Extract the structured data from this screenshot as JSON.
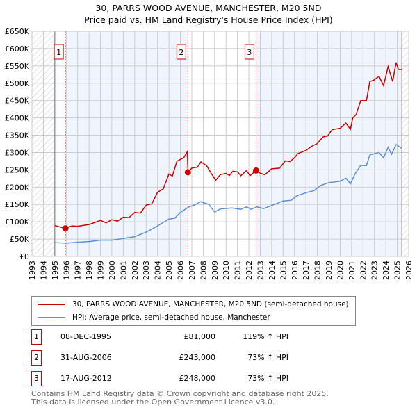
{
  "chart_data": {
    "type": "line",
    "title": "30, PARRS WOOD AVENUE, MANCHESTER, M20 5ND",
    "subtitle": "Price paid vs. HM Land Registry's House Price Index (HPI)",
    "xlim": [
      1993,
      2026
    ],
    "ylim": [
      0,
      650000
    ],
    "x_ticks": [
      "1993",
      "1994",
      "1995",
      "1996",
      "1997",
      "1998",
      "1999",
      "2000",
      "2001",
      "2002",
      "2003",
      "2004",
      "2005",
      "2006",
      "2007",
      "2008",
      "2009",
      "2010",
      "2011",
      "2012",
      "2013",
      "2014",
      "2015",
      "2016",
      "2017",
      "2018",
      "2019",
      "2020",
      "2021",
      "2022",
      "2023",
      "2024",
      "2025",
      "2026"
    ],
    "y_ticks": [
      "£0",
      "£50K",
      "£100K",
      "£150K",
      "£200K",
      "£250K",
      "£300K",
      "£350K",
      "£400K",
      "£450K",
      "£500K",
      "£550K",
      "£600K",
      "£650K"
    ],
    "grid": true,
    "series": [
      {
        "name": "30, PARRS WOOD AVENUE, MANCHESTER, M20 5ND (semi-detached house)",
        "color": "#cc0000",
        "x": [
          1995.0,
          1995.9,
          1996.5,
          1997,
          1998,
          1999,
          1999.5,
          2000,
          2000.5,
          2001,
          2001.5,
          2002,
          2002.5,
          2003,
          2003.5,
          2004,
          2004.5,
          2005,
          2005.3,
          2005.7,
          2006.3,
          2006.6,
          2006.67,
          2007,
          2007.5,
          2007.8,
          2008.3,
          2008.7,
          2009.1,
          2009.5,
          2010,
          2010.3,
          2010.6,
          2011,
          2011.3,
          2011.8,
          2012.1,
          2012.62,
          2013,
          2013.4,
          2014,
          2014.7,
          2015.2,
          2015.6,
          2016,
          2016.3,
          2017,
          2017.5,
          2018,
          2018.5,
          2018.9,
          2019.3,
          2020,
          2020.5,
          2020.9,
          2021.1,
          2021.4,
          2021.8,
          2022.3,
          2022.6,
          2023,
          2023.4,
          2023.8,
          2024.2,
          2024.6,
          2024.9,
          2025.1,
          2025.4
        ],
        "y": [
          89,
          81,
          88,
          87,
          92,
          104,
          97,
          106,
          102,
          113,
          112,
          127,
          125,
          148,
          152,
          185,
          195,
          238,
          232,
          275,
          285,
          302,
          243,
          255,
          258,
          273,
          262,
          240,
          220,
          236,
          240,
          234,
          246,
          244,
          233,
          248,
          233,
          248,
          240,
          236,
          253,
          255,
          276,
          274,
          285,
          297,
          306,
          318,
          326,
          345,
          348,
          366,
          370,
          385,
          367,
          400,
          410,
          450,
          450,
          505,
          510,
          520,
          493,
          548,
          505,
          560,
          540,
          540
        ]
      },
      {
        "name": "HPI: Average price, semi-detached house, Manchester",
        "color": "#5b8fd6",
        "x": [
          1995,
          1996,
          1997,
          1998,
          1999,
          2000,
          2001,
          2002,
          2003,
          2004,
          2005,
          2005.5,
          2006,
          2006.7,
          2007.2,
          2007.8,
          2008.5,
          2009,
          2009.5,
          2010.5,
          2011.3,
          2011.8,
          2012.2,
          2012.7,
          2013.3,
          2014,
          2015,
          2015.7,
          2016.2,
          2017,
          2017.7,
          2018.3,
          2019,
          2020,
          2020.5,
          2020.9,
          2021.3,
          2021.8,
          2022.3,
          2022.6,
          2023.4,
          2023.8,
          2024.2,
          2024.5,
          2024.9,
          2025.4
        ],
        "y": [
          40,
          38,
          41,
          43,
          47,
          47,
          52,
          57,
          70,
          88,
          108,
          110,
          127,
          142,
          148,
          158,
          150,
          128,
          137,
          140,
          136,
          143,
          136,
          143,
          138,
          147,
          160,
          162,
          175,
          184,
          190,
          205,
          213,
          217,
          226,
          210,
          238,
          263,
          262,
          293,
          300,
          285,
          315,
          295,
          323,
          312
        ]
      }
    ],
    "y_unit": "thousands GBP",
    "data_end": 2025.4,
    "sales": [
      {
        "label": "1",
        "x": 1995.93,
        "date": "08-DEC-1995",
        "price": "£81,000",
        "value": 81,
        "hpi": "119% ↑ HPI"
      },
      {
        "label": "2",
        "x": 2006.66,
        "date": "31-AUG-2006",
        "price": "£243,000",
        "value": 243,
        "hpi": "73% ↑ HPI"
      },
      {
        "label": "3",
        "x": 2012.63,
        "date": "17-AUG-2012",
        "price": "£248,000",
        "value": 248,
        "hpi": "73% ↑ HPI"
      }
    ],
    "legend_placement": "below"
  },
  "footer": {
    "line1": "Contains HM Land Registry data © Crown copyright and database right 2025.",
    "line2": "This data is licensed under the Open Government Licence v3.0."
  }
}
